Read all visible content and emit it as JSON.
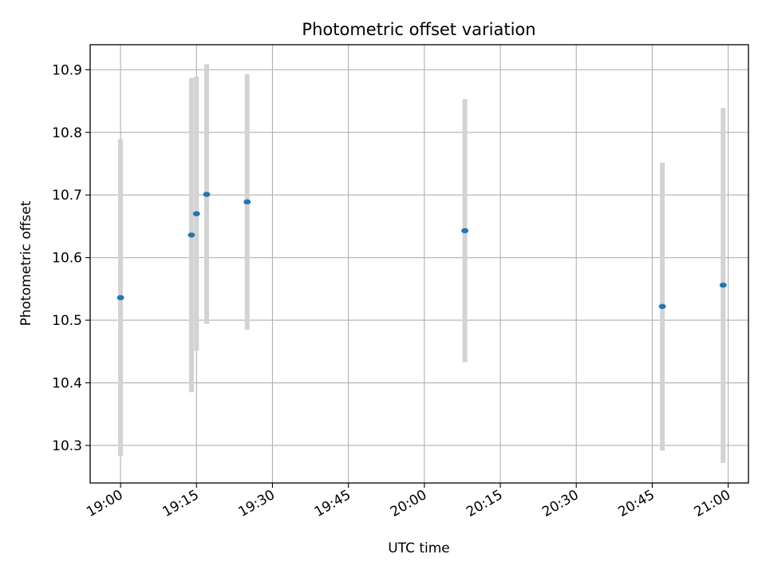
{
  "chart_data": {
    "type": "scatter",
    "title": "Photometric offset variation",
    "xlabel": "UTC time",
    "ylabel": "Photometric offset",
    "grid": true,
    "x_ticks": [
      "19:00",
      "19:15",
      "19:30",
      "19:45",
      "20:00",
      "20:15",
      "20:30",
      "20:45",
      "21:00"
    ],
    "y_ticks": [
      "10.3",
      "10.4",
      "10.5",
      "10.6",
      "10.7",
      "10.8",
      "10.9"
    ],
    "xlim": [
      "18:54",
      "21:04"
    ],
    "ylim": [
      10.24,
      10.94
    ],
    "series": [
      {
        "points": [
          {
            "x": "19:00",
            "y": 10.536,
            "ylow": 10.283,
            "yhigh": 10.789
          },
          {
            "x": "19:14",
            "y": 10.636,
            "ylow": 10.385,
            "yhigh": 10.887
          },
          {
            "x": "19:15",
            "y": 10.67,
            "ylow": 10.451,
            "yhigh": 10.889
          },
          {
            "x": "19:17",
            "y": 10.701,
            "ylow": 10.494,
            "yhigh": 10.909
          },
          {
            "x": "19:25",
            "y": 10.689,
            "ylow": 10.485,
            "yhigh": 10.893
          },
          {
            "x": "20:08",
            "y": 10.643,
            "ylow": 10.433,
            "yhigh": 10.853
          },
          {
            "x": "20:47",
            "y": 10.522,
            "ylow": 10.292,
            "yhigh": 10.752
          },
          {
            "x": "20:59",
            "y": 10.556,
            "ylow": 10.272,
            "yhigh": 10.839
          }
        ]
      }
    ],
    "colors": {
      "marker": "#1f77b4",
      "errorbar": "#d3d3d3",
      "grid": "#b0b0b0",
      "axes": "#000000"
    }
  }
}
